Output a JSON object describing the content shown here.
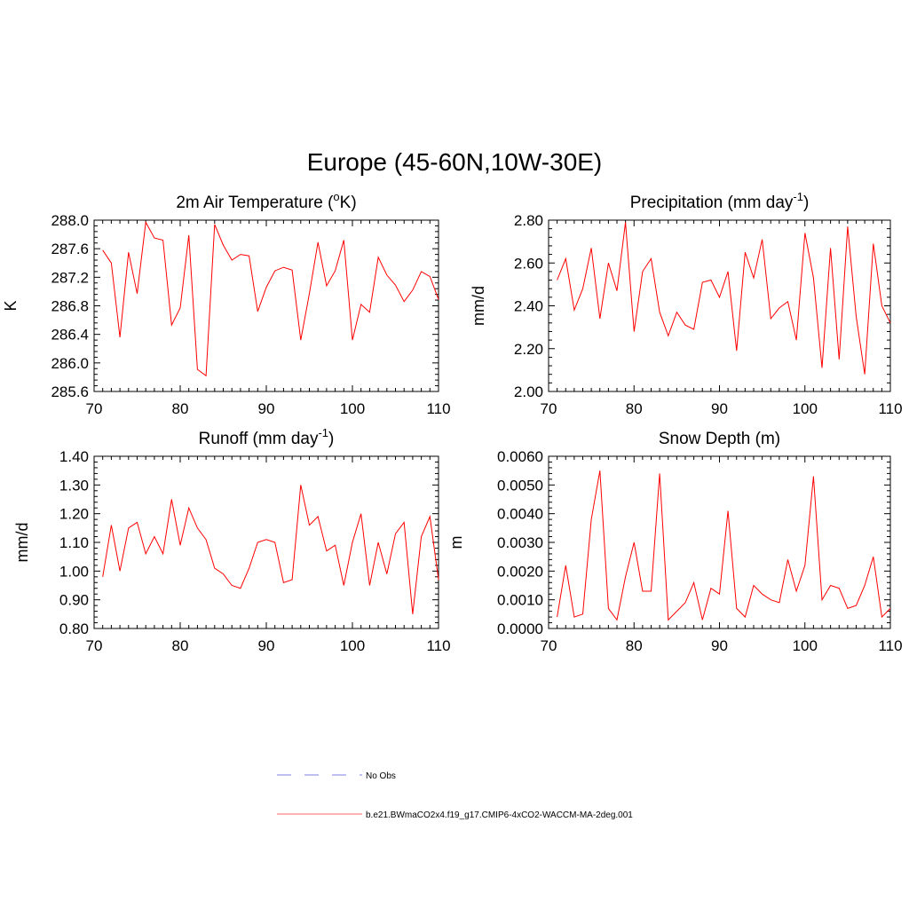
{
  "title": "Europe (45-60N,10W-30E)",
  "colors": {
    "model_line": "#ff0000",
    "obs_line": "#9999ee",
    "axes": "#000000"
  },
  "legend": [
    {
      "label": "No Obs",
      "style": "dashed",
      "color": "#9999ee"
    },
    {
      "label": "b.e21.BWmaCO2x4.f19_g17.CMIP6-4xCO2-WACCM-MA-2deg.001",
      "style": "solid",
      "color": "#ff0000"
    }
  ],
  "chart_data": [
    {
      "type": "line",
      "title": "2m Air Temperature (oK)",
      "title_parts": {
        "before": "2m Air Temperature (",
        "sup": "o",
        "after": "K)"
      },
      "xlabel": "",
      "ylabel": "K",
      "xlim": [
        70,
        110
      ],
      "ylim": [
        285.6,
        288.0
      ],
      "xticks": [
        "70",
        "80",
        "90",
        "100",
        "110"
      ],
      "yticks": [
        "285.6",
        "286.0",
        "286.4",
        "286.8",
        "287.2",
        "287.6",
        "288.0"
      ],
      "x": [
        71,
        72,
        73,
        74,
        75,
        76,
        77,
        78,
        79,
        80,
        81,
        82,
        83,
        84,
        85,
        86,
        87,
        88,
        89,
        90,
        91,
        92,
        93,
        94,
        95,
        96,
        97,
        98,
        99,
        100,
        101,
        102,
        103,
        104,
        105,
        106,
        107,
        108,
        109,
        110
      ],
      "series": [
        {
          "name": "b.e21.BWmaCO2x4.f19_g17.CMIP6-4xCO2-WACCM-MA-2deg.001",
          "values": [
            287.58,
            287.4,
            286.36,
            287.55,
            286.97,
            287.97,
            287.75,
            287.72,
            286.53,
            286.77,
            287.79,
            285.91,
            285.82,
            287.94,
            287.65,
            287.44,
            287.52,
            287.5,
            286.72,
            287.06,
            287.29,
            287.34,
            287.3,
            286.32,
            286.97,
            287.69,
            287.08,
            287.29,
            287.72,
            286.32,
            286.82,
            286.71,
            287.48,
            287.23,
            287.09,
            286.86,
            287.02,
            287.28,
            287.21,
            286.89
          ]
        }
      ]
    },
    {
      "type": "line",
      "title": "Precipitation (mm day-1)",
      "title_parts": {
        "before": "Precipitation (mm day",
        "sup": "-1",
        "after": ")"
      },
      "xlabel": "",
      "ylabel": "mm/d",
      "xlim": [
        70,
        110
      ],
      "ylim": [
        2.0,
        2.8
      ],
      "xticks": [
        "70",
        "80",
        "90",
        "100",
        "110"
      ],
      "yticks": [
        "2.00",
        "2.20",
        "2.40",
        "2.60",
        "2.80"
      ],
      "x": [
        71,
        72,
        73,
        74,
        75,
        76,
        77,
        78,
        79,
        80,
        81,
        82,
        83,
        84,
        85,
        86,
        87,
        88,
        89,
        90,
        91,
        92,
        93,
        94,
        95,
        96,
        97,
        98,
        99,
        100,
        101,
        102,
        103,
        104,
        105,
        106,
        107,
        108,
        109,
        110
      ],
      "series": [
        {
          "name": "b.e21.BWmaCO2x4.f19_g17.CMIP6-4xCO2-WACCM-MA-2deg.001",
          "values": [
            2.52,
            2.62,
            2.38,
            2.48,
            2.67,
            2.34,
            2.6,
            2.47,
            2.79,
            2.28,
            2.56,
            2.62,
            2.37,
            2.26,
            2.37,
            2.31,
            2.29,
            2.51,
            2.52,
            2.44,
            2.56,
            2.19,
            2.65,
            2.53,
            2.71,
            2.34,
            2.39,
            2.42,
            2.24,
            2.74,
            2.53,
            2.11,
            2.67,
            2.15,
            2.77,
            2.35,
            2.08,
            2.69,
            2.4,
            2.32
          ]
        }
      ]
    },
    {
      "type": "line",
      "title": "Runoff (mm day-1)",
      "title_parts": {
        "before": "Runoff (mm day",
        "sup": "-1",
        "after": ")"
      },
      "xlabel": "",
      "ylabel": "mm/d",
      "xlim": [
        70,
        110
      ],
      "ylim": [
        0.8,
        1.4
      ],
      "xticks": [
        "70",
        "80",
        "90",
        "100",
        "110"
      ],
      "yticks": [
        "0.80",
        "0.90",
        "1.00",
        "1.10",
        "1.20",
        "1.30",
        "1.40"
      ],
      "x": [
        71,
        72,
        73,
        74,
        75,
        76,
        77,
        78,
        79,
        80,
        81,
        82,
        83,
        84,
        85,
        86,
        87,
        88,
        89,
        90,
        91,
        92,
        93,
        94,
        95,
        96,
        97,
        98,
        99,
        100,
        101,
        102,
        103,
        104,
        105,
        106,
        107,
        108,
        109,
        110
      ],
      "series": [
        {
          "name": "b.e21.BWmaCO2x4.f19_g17.CMIP6-4xCO2-WACCM-MA-2deg.001",
          "values": [
            0.98,
            1.16,
            1.0,
            1.15,
            1.17,
            1.06,
            1.12,
            1.06,
            1.25,
            1.09,
            1.22,
            1.15,
            1.11,
            1.01,
            0.99,
            0.95,
            0.94,
            1.01,
            1.1,
            1.11,
            1.1,
            0.96,
            0.97,
            1.3,
            1.16,
            1.19,
            1.07,
            1.09,
            0.95,
            1.1,
            1.2,
            0.95,
            1.1,
            0.99,
            1.13,
            1.17,
            0.85,
            1.12,
            1.19,
            0.97
          ]
        }
      ]
    },
    {
      "type": "line",
      "title": "Snow Depth (m)",
      "title_parts": {
        "before": "Snow Depth (m)",
        "sup": "",
        "after": ""
      },
      "xlabel": "",
      "ylabel": "m",
      "xlim": [
        70,
        110
      ],
      "ylim": [
        0.0,
        0.006
      ],
      "xticks": [
        "70",
        "80",
        "90",
        "100",
        "110"
      ],
      "yticks": [
        "0.0000",
        "0.0010",
        "0.0020",
        "0.0030",
        "0.0040",
        "0.0050",
        "0.0060"
      ],
      "x": [
        71,
        72,
        73,
        74,
        75,
        76,
        77,
        78,
        79,
        80,
        81,
        82,
        83,
        84,
        85,
        86,
        87,
        88,
        89,
        90,
        91,
        92,
        93,
        94,
        95,
        96,
        97,
        98,
        99,
        100,
        101,
        102,
        103,
        104,
        105,
        106,
        107,
        108,
        109,
        110
      ],
      "series": [
        {
          "name": "b.e21.BWmaCO2x4.f19_g17.CMIP6-4xCO2-WACCM-MA-2deg.001",
          "values": [
            0.0004,
            0.0022,
            0.0004,
            0.0005,
            0.0038,
            0.0055,
            0.0007,
            0.0003,
            0.0018,
            0.003,
            0.0013,
            0.0013,
            0.0054,
            0.0003,
            0.0006,
            0.0009,
            0.0016,
            0.0003,
            0.0014,
            0.0012,
            0.0041,
            0.0007,
            0.0004,
            0.0015,
            0.0012,
            0.001,
            0.0009,
            0.0024,
            0.0013,
            0.0022,
            0.0053,
            0.001,
            0.0015,
            0.0014,
            0.0007,
            0.0008,
            0.0015,
            0.0025,
            0.0004,
            0.0007
          ]
        }
      ]
    }
  ]
}
